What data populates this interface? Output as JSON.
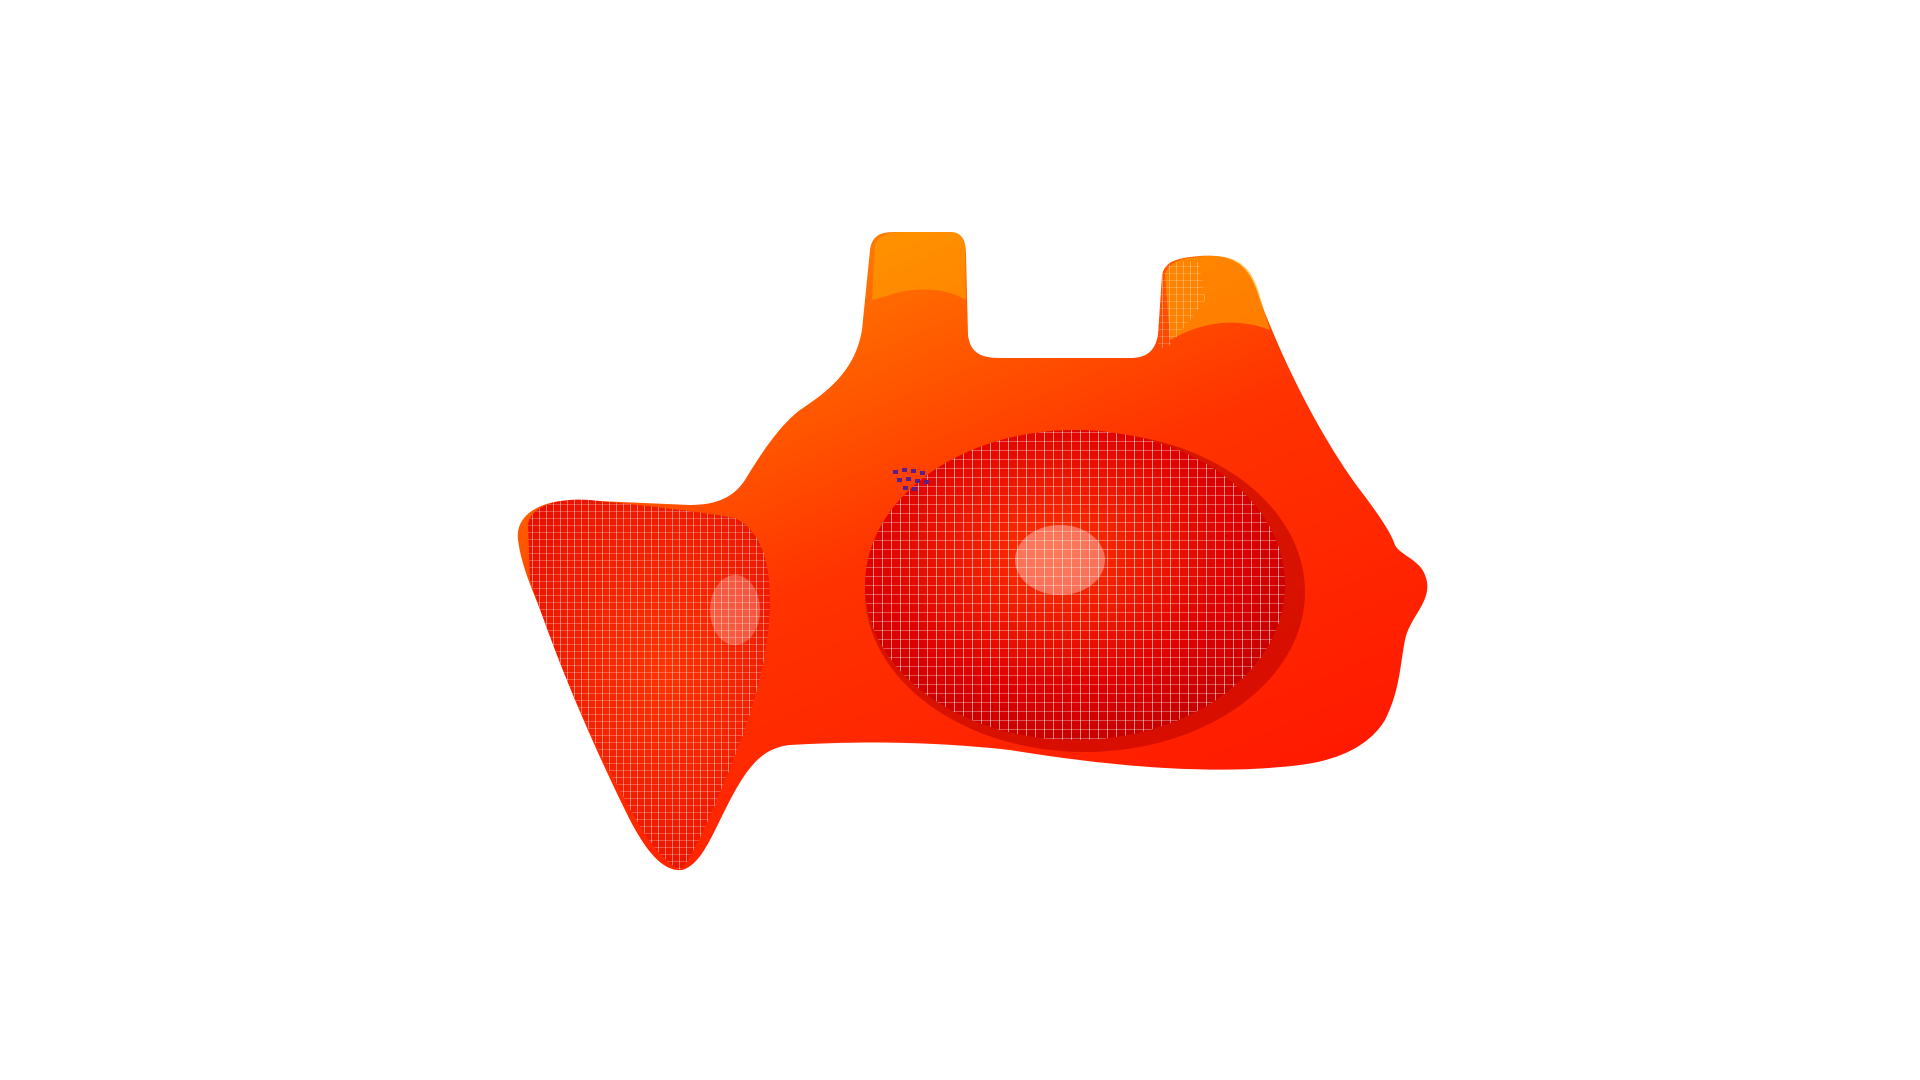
{
  "viewer": {
    "background_color": "#ffffff"
  },
  "model": {
    "colors": {
      "highlight": "#ffa500",
      "warm": "#ff6a00",
      "mid": "#ff3300",
      "base": "#ff1a00",
      "deep": "#e00000",
      "shadow": "#b80000",
      "wire": "#ffffff",
      "artifact": "#5a1f8a"
    }
  }
}
